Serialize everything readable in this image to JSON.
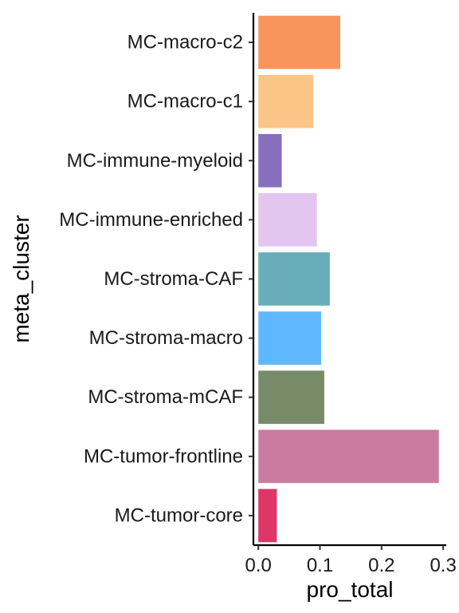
{
  "chart_data": {
    "type": "bar",
    "orientation": "horizontal",
    "categories": [
      "MC-macro-c2",
      "MC-macro-c1",
      "MC-immune-myeloid",
      "MC-immune-enriched",
      "MC-stroma-CAF",
      "MC-stroma-macro",
      "MC-stroma-mCAF",
      "MC-tumor-frontline",
      "MC-tumor-core"
    ],
    "values": [
      0.133,
      0.089,
      0.038,
      0.095,
      0.116,
      0.102,
      0.107,
      0.293,
      0.03
    ],
    "colors": [
      "#F8955C",
      "#FBC587",
      "#8670BD",
      "#E2C6EF",
      "#6AADBA",
      "#5FB8FD",
      "#788B68",
      "#CC7BA0",
      "#DE3666"
    ],
    "xlabel": "pro_total",
    "ylabel": "meta_cluster",
    "xlim": [
      -0.008,
      0.305
    ],
    "xticks": [
      0.0,
      0.1,
      0.2,
      0.3
    ],
    "xtick_labels": [
      "0.0",
      "0.1",
      "0.2",
      "0.3"
    ],
    "grid": false,
    "legend": "none"
  }
}
